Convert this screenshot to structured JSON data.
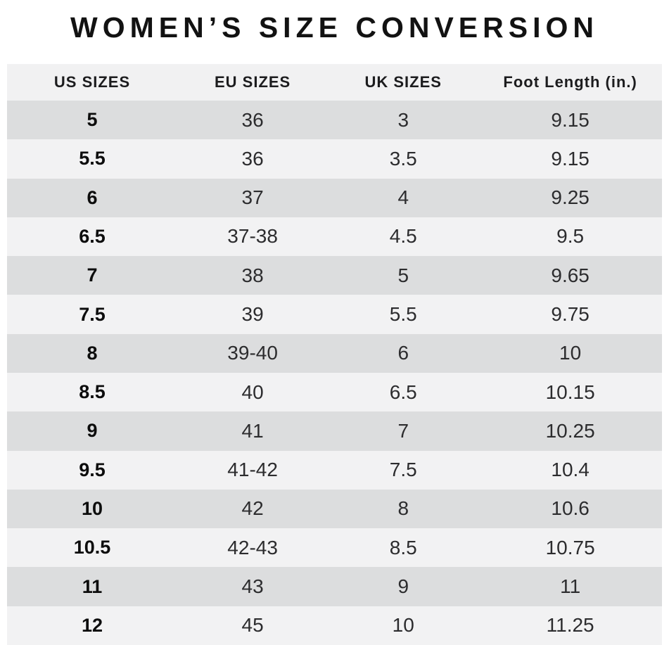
{
  "chart_data": {
    "type": "table",
    "title": "WOMEN’S SIZE CONVERSION",
    "columns": [
      "US SIZES",
      "EU SIZES",
      "UK SIZES",
      "Foot Length (in.)"
    ],
    "rows": [
      [
        "5",
        "36",
        "3",
        "9.15"
      ],
      [
        "5.5",
        "36",
        "3.5",
        "9.15"
      ],
      [
        "6",
        "37",
        "4",
        "9.25"
      ],
      [
        "6.5",
        "37-38",
        "4.5",
        "9.5"
      ],
      [
        "7",
        "38",
        "5",
        "9.65"
      ],
      [
        "7.5",
        "39",
        "5.5",
        "9.75"
      ],
      [
        "8",
        "39-40",
        "6",
        "10"
      ],
      [
        "8.5",
        "40",
        "6.5",
        "10.15"
      ],
      [
        "9",
        "41",
        "7",
        "10.25"
      ],
      [
        "9.5",
        "41-42",
        "7.5",
        "10.4"
      ],
      [
        "10",
        "42",
        "8",
        "10.6"
      ],
      [
        "10.5",
        "42-43",
        "8.5",
        "10.75"
      ],
      [
        "11",
        "43",
        "9",
        "11"
      ],
      [
        "12",
        "45",
        "10",
        "11.25"
      ]
    ],
    "layout": {
      "header_row": true,
      "alternating_rows": true,
      "first_data_row_shade": "dark"
    }
  },
  "colors": {
    "page_bg": "#ffffff",
    "header_bg": "#f1f1f2",
    "row_dark": "#dcddde",
    "row_light": "#f2f2f3",
    "title_text": "#121212",
    "cell_text": "#2c2c2e",
    "us_size_text": "#0d0d0d"
  }
}
